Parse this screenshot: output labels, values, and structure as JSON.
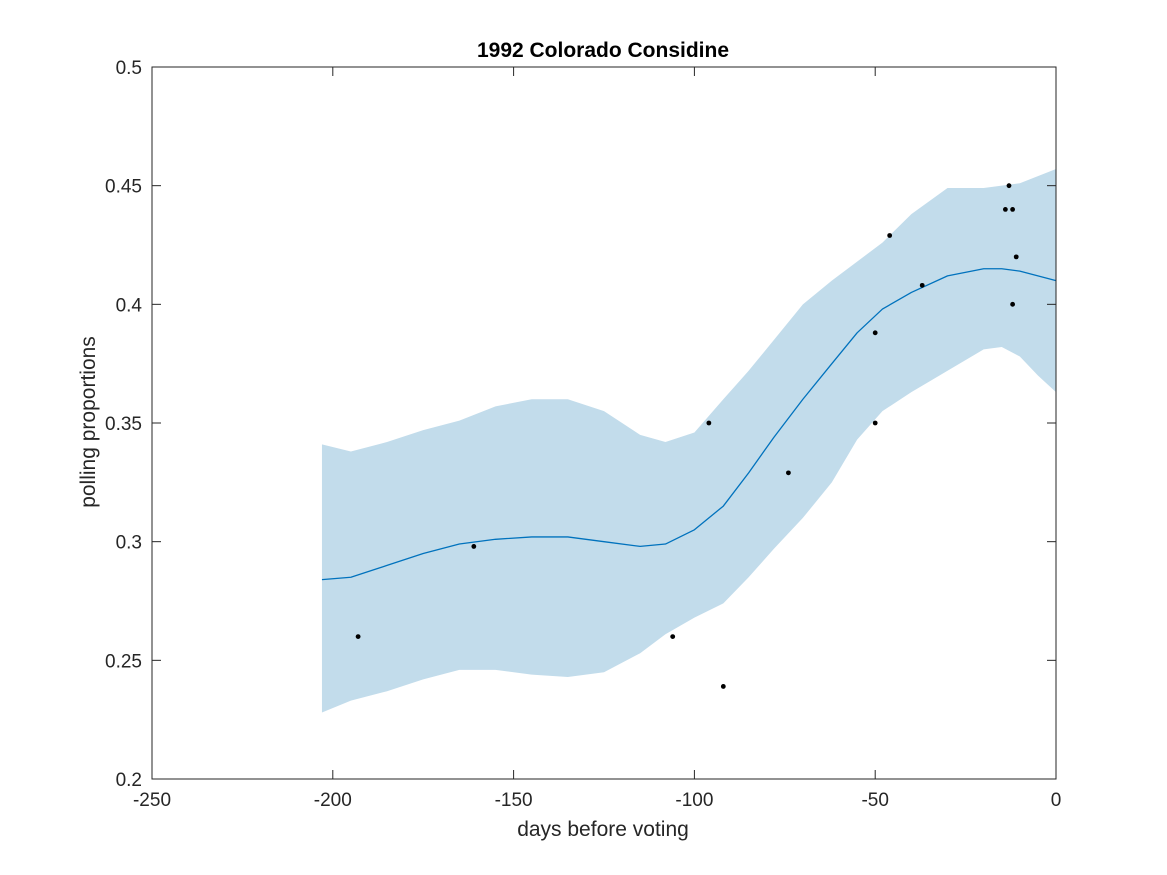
{
  "chart_data": {
    "type": "line",
    "title": "1992 Colorado Considine",
    "xlabel": "days before voting",
    "ylabel": "polling proportions",
    "xlim": [
      -250,
      0
    ],
    "ylim": [
      0.2,
      0.5
    ],
    "xticks": [
      -250,
      -200,
      -150,
      -100,
      -50,
      0
    ],
    "xtick_labels": [
      "-250",
      "-200",
      "-150",
      "-100",
      "-50",
      "0"
    ],
    "yticks": [
      0.2,
      0.25,
      0.3,
      0.35,
      0.4,
      0.45,
      0.5
    ],
    "ytick_labels": [
      "0.2",
      "0.25",
      "0.3",
      "0.35",
      "0.4",
      "0.45",
      "0.5"
    ],
    "grid": false,
    "colors": {
      "band": "#c2dceb",
      "line": "#0072bd",
      "points": "#000000",
      "axis": "#262626"
    },
    "trend": {
      "x": [
        -203,
        -195,
        -185,
        -175,
        -165,
        -155,
        -145,
        -135,
        -125,
        -115,
        -108,
        -100,
        -92,
        -85,
        -78,
        -70,
        -62,
        -55,
        -48,
        -40,
        -30,
        -20,
        -15,
        -10,
        -5,
        0
      ],
      "y": [
        0.284,
        0.285,
        0.29,
        0.295,
        0.299,
        0.301,
        0.302,
        0.302,
        0.3,
        0.298,
        0.299,
        0.305,
        0.315,
        0.329,
        0.344,
        0.36,
        0.375,
        0.388,
        0.398,
        0.405,
        0.412,
        0.415,
        0.415,
        0.414,
        0.412,
        0.41
      ]
    },
    "band": {
      "x": [
        -203,
        -195,
        -185,
        -175,
        -165,
        -155,
        -145,
        -135,
        -125,
        -115,
        -108,
        -100,
        -92,
        -85,
        -78,
        -70,
        -62,
        -55,
        -48,
        -40,
        -30,
        -20,
        -15,
        -10,
        -5,
        0
      ],
      "upper": [
        0.341,
        0.338,
        0.342,
        0.347,
        0.351,
        0.357,
        0.36,
        0.36,
        0.355,
        0.345,
        0.342,
        0.346,
        0.36,
        0.372,
        0.385,
        0.4,
        0.41,
        0.418,
        0.426,
        0.438,
        0.449,
        0.449,
        0.45,
        0.451,
        0.454,
        0.457
      ],
      "lower": [
        0.228,
        0.233,
        0.237,
        0.242,
        0.246,
        0.246,
        0.244,
        0.243,
        0.245,
        0.253,
        0.261,
        0.268,
        0.274,
        0.285,
        0.297,
        0.31,
        0.325,
        0.343,
        0.355,
        0.363,
        0.372,
        0.381,
        0.382,
        0.378,
        0.37,
        0.363
      ]
    },
    "points": [
      {
        "x": -193,
        "y": 0.26
      },
      {
        "x": -161,
        "y": 0.298
      },
      {
        "x": -106,
        "y": 0.26
      },
      {
        "x": -96,
        "y": 0.35
      },
      {
        "x": -92,
        "y": 0.239
      },
      {
        "x": -74,
        "y": 0.329
      },
      {
        "x": -50,
        "y": 0.388
      },
      {
        "x": -50,
        "y": 0.35
      },
      {
        "x": -46,
        "y": 0.429
      },
      {
        "x": -37,
        "y": 0.408
      },
      {
        "x": -13,
        "y": 0.45
      },
      {
        "x": -14,
        "y": 0.44
      },
      {
        "x": -12,
        "y": 0.44
      },
      {
        "x": -11,
        "y": 0.42
      },
      {
        "x": -12,
        "y": 0.4
      }
    ]
  }
}
